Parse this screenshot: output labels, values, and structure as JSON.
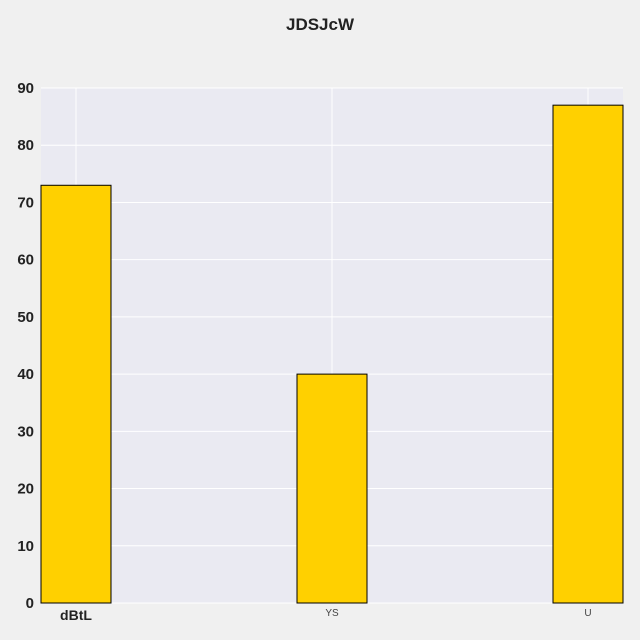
{
  "chart_data": {
    "type": "bar",
    "title": "JDSJcW",
    "categories": [
      "dBtL",
      "YS",
      "U"
    ],
    "values": [
      73,
      40,
      87
    ],
    "xlabel": "",
    "ylabel": "",
    "ylim": [
      0,
      90
    ],
    "yticks": [
      0,
      10,
      20,
      30,
      40,
      50,
      60,
      70,
      80,
      90
    ],
    "grid": true,
    "bar_color": "#ffd000",
    "bar_edge_color": "#000000",
    "plot_background": "#eaeaf2",
    "grid_color": "#ffffff"
  }
}
